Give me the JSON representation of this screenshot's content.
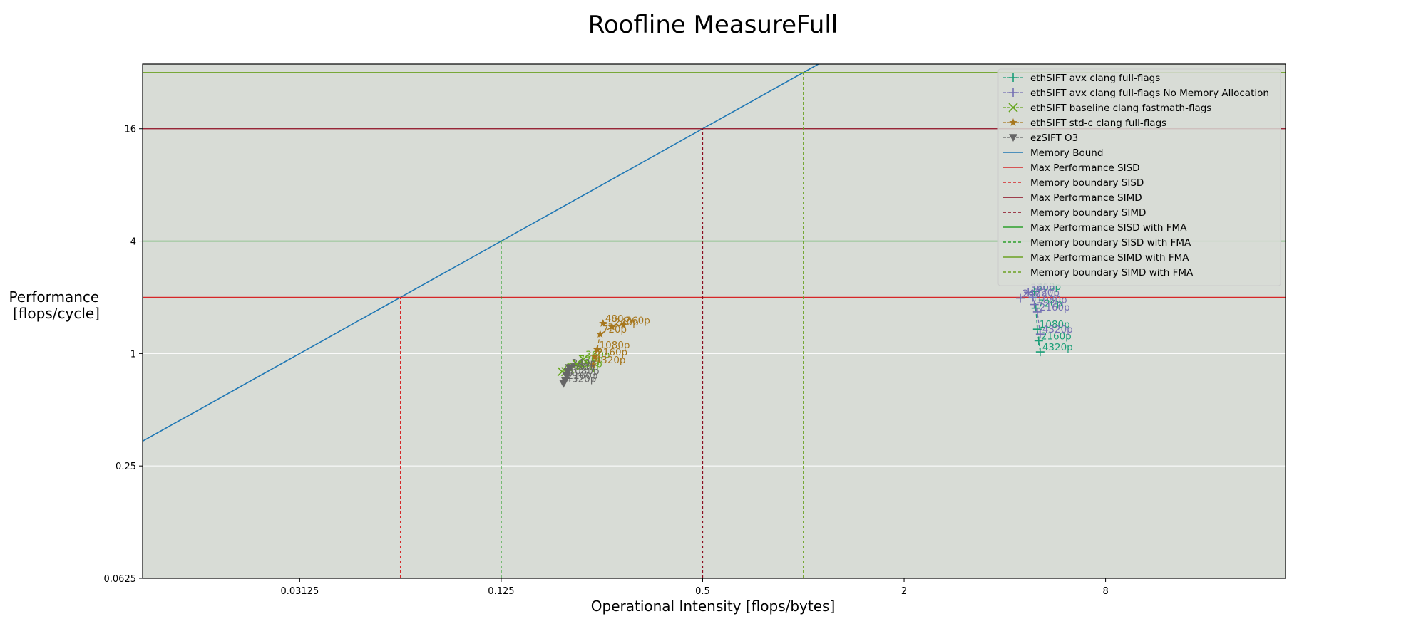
{
  "chart_data": {
    "type": "scatter",
    "title": "Roofline MeasureFull",
    "xlabel": "Operational Intensity [flops/bytes]",
    "ylabel_lines": [
      "Performance",
      "[flops/cycle]"
    ],
    "xscale": "log2",
    "yscale": "log2",
    "xlim": [
      0.0106,
      27.6
    ],
    "ylim": [
      0.0625,
      35.5
    ],
    "xticks": [
      {
        "value": 0.03125,
        "label": "0.03125"
      },
      {
        "value": 0.125,
        "label": "0.125"
      },
      {
        "value": 0.5,
        "label": "0.5"
      },
      {
        "value": 2,
        "label": "2"
      },
      {
        "value": 8,
        "label": "8"
      }
    ],
    "yticks": [
      {
        "value": 0.0625,
        "label": "0.0625"
      },
      {
        "value": 0.25,
        "label": "0.25"
      },
      {
        "value": 1,
        "label": "1"
      },
      {
        "value": 4,
        "label": "4"
      },
      {
        "value": 16,
        "label": "16"
      }
    ],
    "grid": "horizontal",
    "background": "#d8dcd6",
    "legend_position": "top-right",
    "series": [
      {
        "name": "ethSIFT avx clang full-flags",
        "marker": "plus",
        "color": "#1b9e77",
        "points": [
          {
            "x": 4.9,
            "y": 2.15,
            "label": "360p"
          },
          {
            "x": 4.95,
            "y": 1.75,
            "label": "720p"
          },
          {
            "x": 5.0,
            "y": 1.35,
            "label": "1080p"
          },
          {
            "x": 5.05,
            "y": 1.17,
            "label": "2160p"
          },
          {
            "x": 5.1,
            "y": 1.02,
            "label": "4320p"
          }
        ]
      },
      {
        "name": "ethSIFT avx clang full-flags No Memory Allocation",
        "marker": "plus",
        "color": "#7570b3",
        "points": [
          {
            "x": 4.45,
            "y": 1.98,
            "label": "240p"
          },
          {
            "x": 4.7,
            "y": 2.13,
            "label": "360p"
          },
          {
            "x": 4.85,
            "y": 2.0,
            "label": "720p"
          },
          {
            "x": 4.9,
            "y": 1.83,
            "label": "1080p"
          },
          {
            "x": 5.0,
            "y": 1.67,
            "label": "2160p"
          },
          {
            "x": 5.1,
            "y": 1.27,
            "label": "4320p"
          }
        ]
      },
      {
        "name": "ethSIFT baseline clang fastmath-flags",
        "marker": "x",
        "color": "#66a61e",
        "points": [
          {
            "x": 0.22,
            "y": 0.93,
            "label": "360p"
          },
          {
            "x": 0.21,
            "y": 0.88,
            "label": "720p"
          },
          {
            "x": 0.2,
            "y": 0.83,
            "label": "1080p"
          },
          {
            "x": 0.195,
            "y": 0.8,
            "label": "2160p"
          },
          {
            "x": 0.19,
            "y": 0.8,
            "label": "4320p"
          }
        ]
      },
      {
        "name": "ethSIFT std-c clang full-flags",
        "marker": "star",
        "color": "#a6761d",
        "points": [
          {
            "x": 0.252,
            "y": 1.45,
            "label": "480p"
          },
          {
            "x": 0.29,
            "y": 1.42,
            "label": "360p"
          },
          {
            "x": 0.268,
            "y": 1.39,
            "label": "240p"
          },
          {
            "x": 0.247,
            "y": 1.27,
            "label": "720p"
          },
          {
            "x": 0.242,
            "y": 1.05,
            "label": "1080p"
          },
          {
            "x": 0.238,
            "y": 0.96,
            "label": "2160p"
          },
          {
            "x": 0.235,
            "y": 0.87,
            "label": "4320p"
          }
        ]
      },
      {
        "name": "ezSIFT O3",
        "marker": "triangle_down",
        "color": "#666666",
        "points": [
          {
            "x": 0.2,
            "y": 0.84,
            "label": "240p"
          },
          {
            "x": 0.198,
            "y": 0.8,
            "label": "360p"
          },
          {
            "x": 0.196,
            "y": 0.76,
            "label": "1080p"
          },
          {
            "x": 0.194,
            "y": 0.72,
            "label": "2160p"
          },
          {
            "x": 0.192,
            "y": 0.69,
            "label": "4320p"
          }
        ]
      }
    ],
    "lines": [
      {
        "name": "Memory Bound",
        "kind": "roof",
        "slope_bytes_per_cycle": 32,
        "color": "#1f77b4",
        "style": "solid"
      },
      {
        "name": "Max Performance SISD",
        "kind": "hline",
        "y": 2,
        "color": "#d62728",
        "style": "solid"
      },
      {
        "name": "Memory boundary SISD",
        "kind": "vline",
        "x": 0.0625,
        "y_top": 2,
        "color": "#d62728",
        "style": "dashed"
      },
      {
        "name": "Max Performance SIMD",
        "kind": "hline",
        "y": 16,
        "color": "#8b0a1e",
        "style": "solid"
      },
      {
        "name": "Memory boundary SIMD",
        "kind": "vline",
        "x": 0.5,
        "y_top": 16,
        "color": "#8b0a1e",
        "style": "dashed"
      },
      {
        "name": "Max Performance SISD with FMA",
        "kind": "hline",
        "y": 4,
        "color": "#2ca02c",
        "style": "solid"
      },
      {
        "name": "Memory boundary SISD with FMA",
        "kind": "vline",
        "x": 0.125,
        "y_top": 4,
        "color": "#2ca02c",
        "style": "dashed"
      },
      {
        "name": "Max Performance SIMD with FMA",
        "kind": "hline",
        "y": 32,
        "color": "#6aa121",
        "style": "solid"
      },
      {
        "name": "Memory boundary SIMD with FMA",
        "kind": "vline",
        "x": 1,
        "y_top": 32,
        "color": "#6aa121",
        "style": "dashed"
      }
    ]
  }
}
